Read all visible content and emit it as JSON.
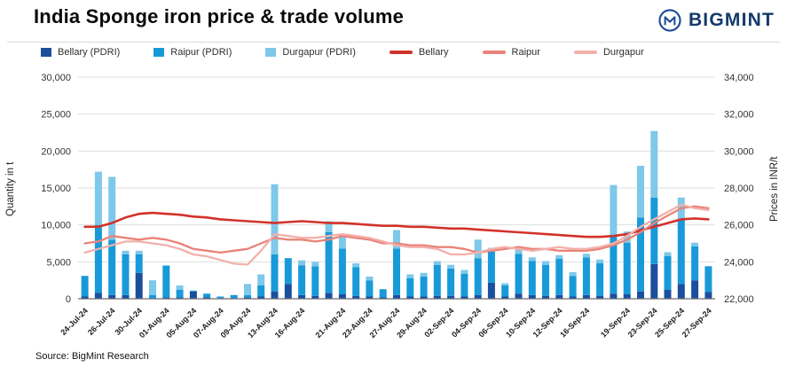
{
  "header": {
    "title": "India Sponge iron price & trade volume",
    "logo_text": "BIGMINT"
  },
  "source": "Source: BigMint Research",
  "chart_data": {
    "type": "combo-stacked-bar-line",
    "left_axis": {
      "label": "Quantity in t",
      "min": 0,
      "max": 30000,
      "step": 5000
    },
    "right_axis": {
      "label": "Prices in INR/t",
      "min": 22000,
      "max": 34000,
      "step": 2000
    },
    "x_ticks": [
      {
        "index": 0,
        "label": "24-Jul-24"
      },
      {
        "index": 2,
        "label": "26-Jul-24"
      },
      {
        "index": 4,
        "label": "30-Jul-24"
      },
      {
        "index": 6,
        "label": "01-Aug-24"
      },
      {
        "index": 8,
        "label": "05-Aug-24"
      },
      {
        "index": 10,
        "label": "07-Aug-24"
      },
      {
        "index": 12,
        "label": "09-Aug-24"
      },
      {
        "index": 14,
        "label": "13-Aug-24"
      },
      {
        "index": 16,
        "label": "16-Aug-24"
      },
      {
        "index": 19,
        "label": "21-Aug-24"
      },
      {
        "index": 21,
        "label": "23-Aug-24"
      },
      {
        "index": 23,
        "label": "27-Aug-24"
      },
      {
        "index": 25,
        "label": "29-Aug-24"
      },
      {
        "index": 27,
        "label": "02-Sep-24"
      },
      {
        "index": 29,
        "label": "04-Sep-24"
      },
      {
        "index": 31,
        "label": "06-Sep-24"
      },
      {
        "index": 33,
        "label": "10-Sep-24"
      },
      {
        "index": 35,
        "label": "12-Sep-24"
      },
      {
        "index": 37,
        "label": "16-Sep-24"
      },
      {
        "index": 40,
        "label": "19-Sep-24"
      },
      {
        "index": 42,
        "label": "23-Sep-24"
      },
      {
        "index": 44,
        "label": "25-Sep-24"
      },
      {
        "index": 46,
        "label": "27-Sep-24"
      }
    ],
    "bar_series": [
      {
        "name": "Bellary (PDRI)",
        "color": "#1b4f9c",
        "values": [
          300,
          800,
          500,
          500,
          3500,
          0,
          200,
          200,
          1000,
          200,
          100,
          0,
          200,
          300,
          1000,
          2000,
          500,
          400,
          800,
          600,
          400,
          300,
          200,
          500,
          300,
          300,
          400,
          400,
          300,
          500,
          2200,
          300,
          700,
          500,
          400,
          500,
          300,
          500,
          400,
          700,
          600,
          1000,
          4700,
          1200,
          2000,
          2500,
          900
        ]
      },
      {
        "name": "Raipur (PDRI)",
        "color": "#189ad8",
        "values": [
          2800,
          9200,
          7500,
          5500,
          2500,
          500,
          4300,
          1000,
          100,
          500,
          200,
          500,
          300,
          1500,
          5000,
          3500,
          4000,
          4000,
          8200,
          6200,
          3900,
          2200,
          1100,
          6300,
          2500,
          2700,
          4200,
          3700,
          3100,
          5000,
          4200,
          1500,
          5400,
          4600,
          4200,
          4900,
          2800,
          5100,
          4400,
          7700,
          7000,
          10000,
          9000,
          4600,
          8700,
          4600,
          3500
        ]
      },
      {
        "name": "Durgapur (PDRI)",
        "color": "#7ec8e9",
        "values": [
          0,
          7200,
          8500,
          500,
          500,
          2000,
          0,
          600,
          0,
          0,
          0,
          0,
          1500,
          1500,
          9500,
          0,
          700,
          600,
          1500,
          2000,
          500,
          500,
          0,
          2500,
          500,
          500,
          500,
          500,
          500,
          2500,
          500,
          300,
          800,
          500,
          500,
          500,
          500,
          500,
          500,
          7000,
          1500,
          7000,
          9000,
          500,
          3000,
          500,
          0
        ]
      }
    ],
    "line_series": [
      {
        "name": "Bellary",
        "color": "#d2322a",
        "values": [
          25900,
          25900,
          26100,
          26400,
          26600,
          26650,
          26600,
          26550,
          26450,
          26400,
          26300,
          26250,
          26200,
          26150,
          26100,
          26150,
          26200,
          26150,
          26100,
          26100,
          26050,
          26000,
          25950,
          25950,
          25900,
          25900,
          25850,
          25800,
          25800,
          25750,
          25700,
          25650,
          25600,
          25550,
          25500,
          25450,
          25400,
          25350,
          25350,
          25400,
          25500,
          25700,
          25900,
          26100,
          26300,
          26350,
          26300
        ]
      },
      {
        "name": "Raipur",
        "color": "#e98379",
        "values": [
          25000,
          25100,
          25400,
          25300,
          25200,
          25300,
          25200,
          25000,
          24700,
          24600,
          24500,
          24600,
          24700,
          25000,
          25300,
          25200,
          25200,
          25100,
          25200,
          25400,
          25300,
          25200,
          25000,
          25000,
          24900,
          24900,
          24800,
          24800,
          24700,
          24500,
          24600,
          24700,
          24800,
          24700,
          24700,
          24600,
          24600,
          24600,
          24700,
          24900,
          25200,
          25600,
          26100,
          26500,
          26900,
          27000,
          26900
        ]
      },
      {
        "name": "Durgapur",
        "color": "#f2b0aa",
        "values": [
          24500,
          24700,
          24900,
          25100,
          25100,
          25000,
          24900,
          24700,
          24400,
          24300,
          24100,
          23900,
          23850,
          24600,
          25500,
          25400,
          25300,
          25300,
          25400,
          25500,
          25400,
          25300,
          25100,
          24900,
          24800,
          24800,
          24700,
          24400,
          24400,
          24500,
          24700,
          24800,
          24700,
          24600,
          24700,
          24800,
          24700,
          24700,
          24800,
          25000,
          25400,
          25900,
          26300,
          26700,
          27100,
          26900,
          26800
        ]
      }
    ]
  }
}
